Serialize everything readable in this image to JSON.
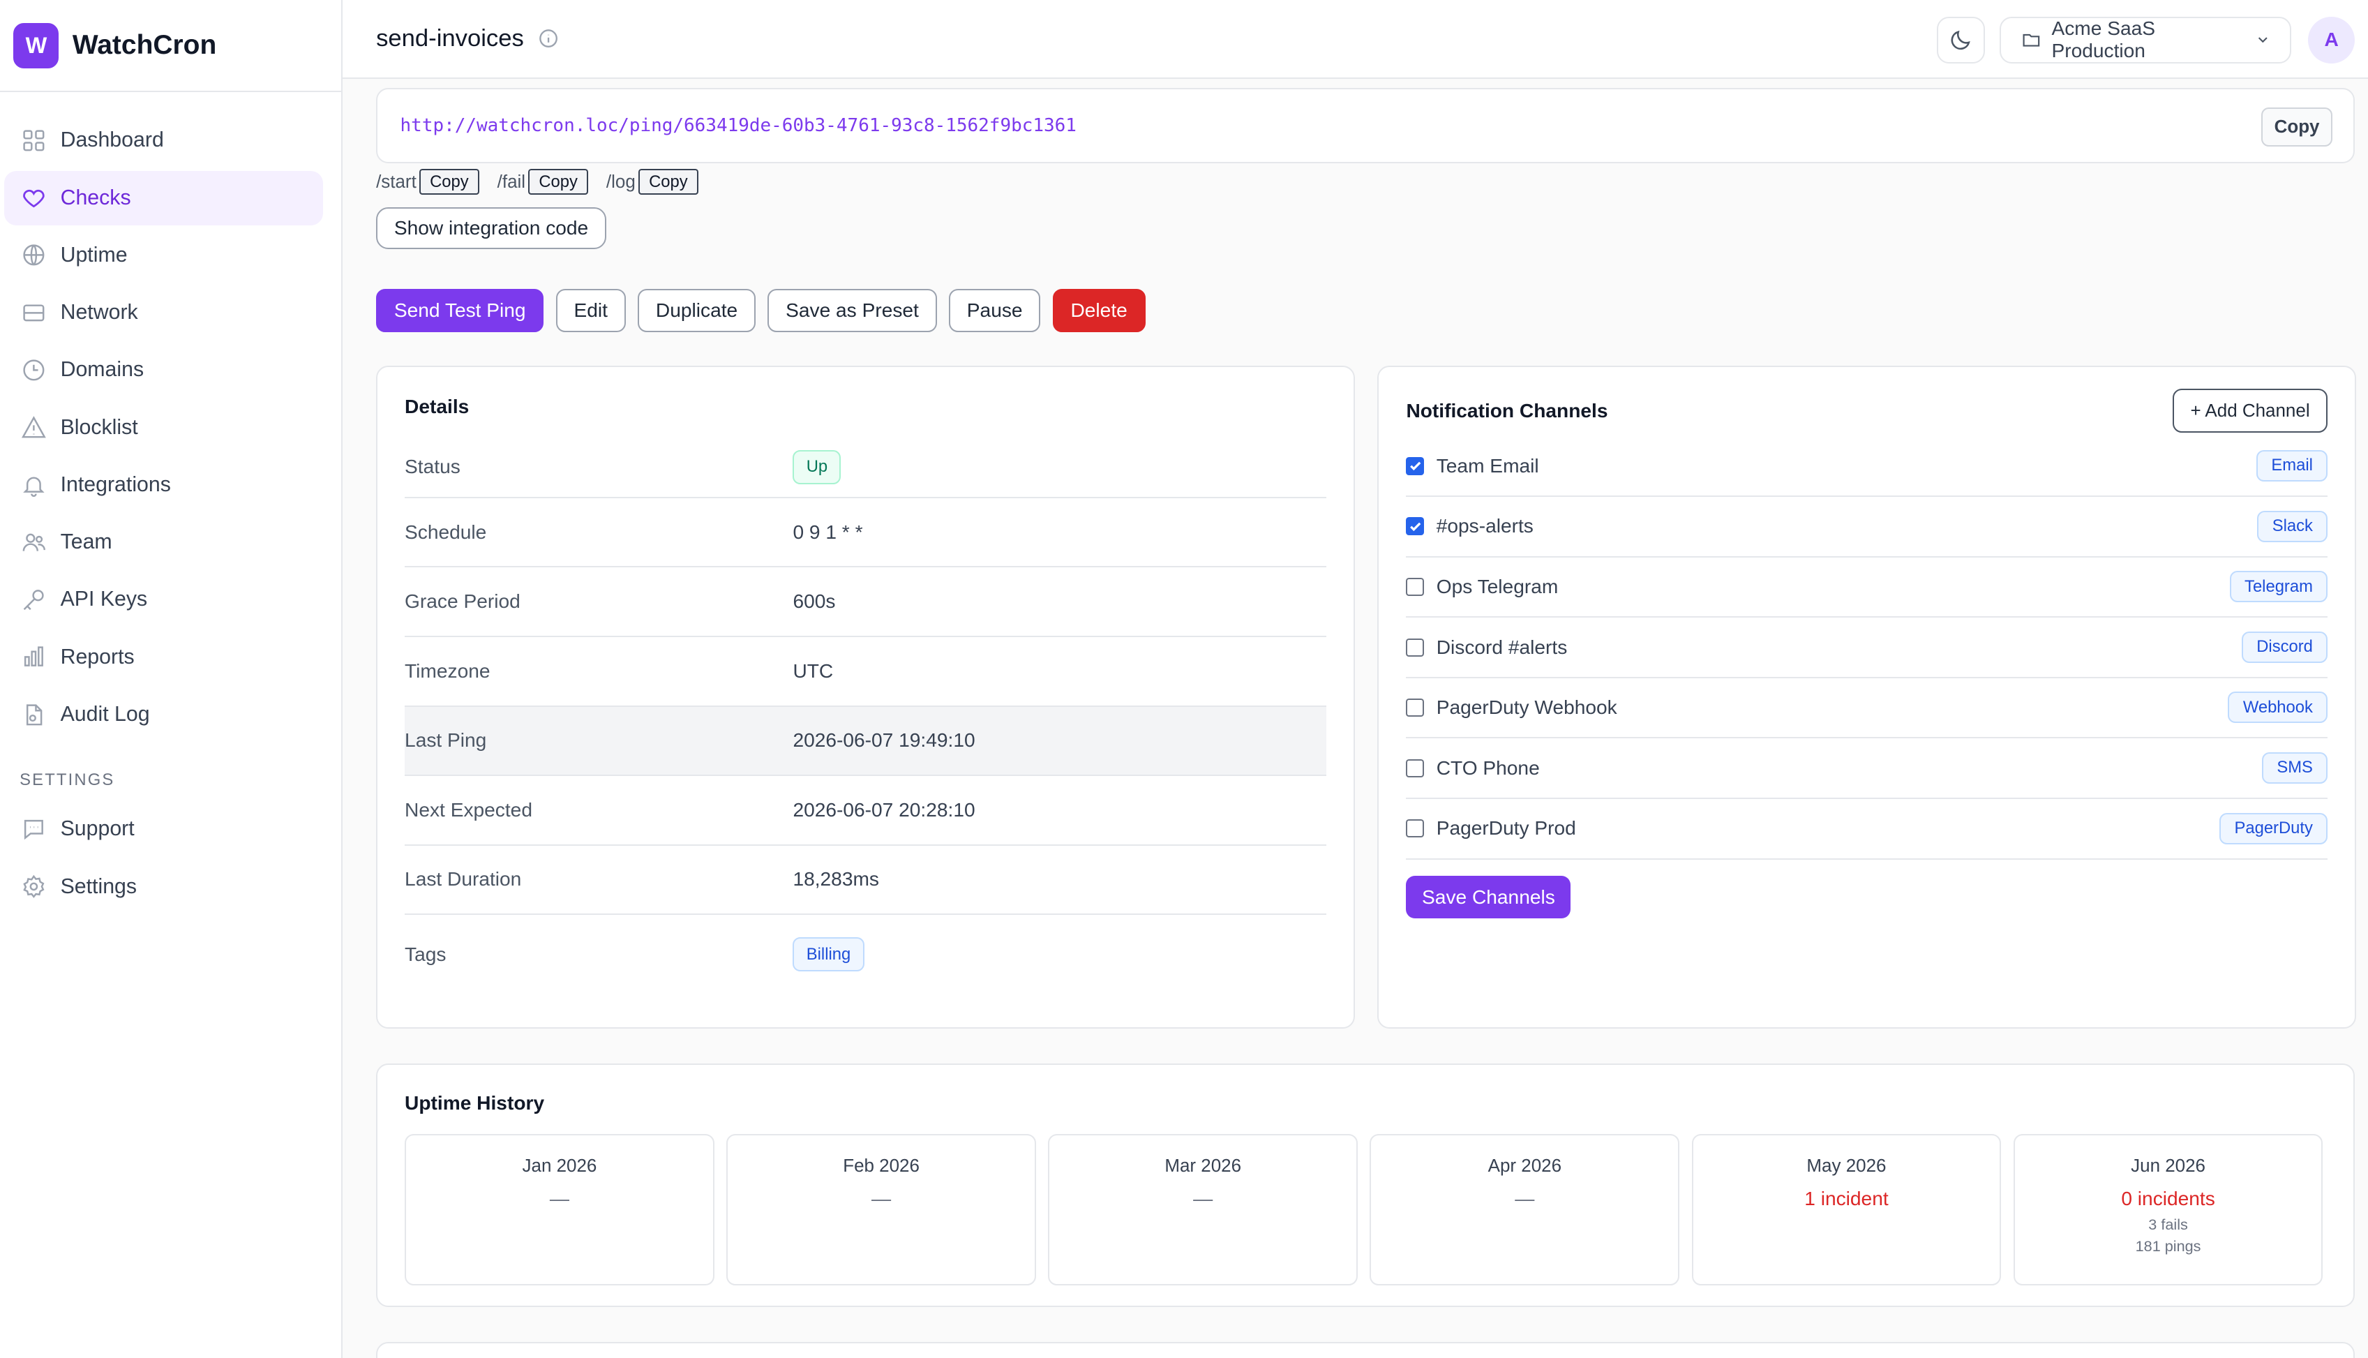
{
  "app": {
    "logo_letter": "W",
    "name": "WatchCron"
  },
  "sidebar": {
    "items": [
      {
        "label": "Dashboard",
        "icon": "grid-icon"
      },
      {
        "label": "Checks",
        "icon": "heart-icon",
        "active": true
      },
      {
        "label": "Uptime",
        "icon": "globe-icon"
      },
      {
        "label": "Network",
        "icon": "server-icon"
      },
      {
        "label": "Domains",
        "icon": "clock-icon"
      },
      {
        "label": "Blocklist",
        "icon": "warning-icon"
      },
      {
        "label": "Integrations",
        "icon": "bell-icon"
      },
      {
        "label": "Team",
        "icon": "users-icon"
      },
      {
        "label": "API Keys",
        "icon": "key-icon"
      },
      {
        "label": "Reports",
        "icon": "bar-chart-icon"
      },
      {
        "label": "Audit Log",
        "icon": "file-icon"
      }
    ],
    "settings_heading": "SETTINGS",
    "settings_items": [
      {
        "label": "Support",
        "icon": "chat-icon"
      },
      {
        "label": "Settings",
        "icon": "gear-icon"
      }
    ]
  },
  "header": {
    "title": "send-invoices",
    "project": "Acme SaaS Production",
    "avatar": "A"
  },
  "ping": {
    "url": "http://watchcron.loc/ping/663419de-60b3-4761-93c8-1562f9bc1361",
    "copy_label": "Copy",
    "endpoints": [
      "/start",
      "/fail",
      "/log"
    ],
    "mini_copy_label": "Copy",
    "integration_label": "Show integration code"
  },
  "actions": {
    "send_test": "Send Test Ping",
    "edit": "Edit",
    "duplicate": "Duplicate",
    "save_preset": "Save as Preset",
    "pause": "Pause",
    "delete": "Delete"
  },
  "details": {
    "title": "Details",
    "status_label": "Status",
    "status_value": "Up",
    "schedule_label": "Schedule",
    "schedule_value": "0 9 1 * *",
    "grace_label": "Grace Period",
    "grace_value": "600s",
    "timezone_label": "Timezone",
    "timezone_value": "UTC",
    "last_ping_label": "Last Ping",
    "last_ping_value": "2026-06-07 19:49:10",
    "next_expected_label": "Next Expected",
    "next_expected_value": "2026-06-07 20:28:10",
    "last_duration_label": "Last Duration",
    "last_duration_value": "18,283ms",
    "tags_label": "Tags",
    "tags_value": "Billing"
  },
  "channels": {
    "title": "Notification Channels",
    "add_label": "+ Add Channel",
    "items": [
      {
        "name": "Team Email",
        "type": "Email",
        "checked": true
      },
      {
        "name": "#ops-alerts",
        "type": "Slack",
        "checked": true
      },
      {
        "name": "Ops Telegram",
        "type": "Telegram",
        "checked": false
      },
      {
        "name": "Discord #alerts",
        "type": "Discord",
        "checked": false
      },
      {
        "name": "PagerDuty Webhook",
        "type": "Webhook",
        "checked": false
      },
      {
        "name": "CTO Phone",
        "type": "SMS",
        "checked": false
      },
      {
        "name": "PagerDuty Prod",
        "type": "PagerDuty",
        "checked": false
      }
    ],
    "save_label": "Save Channels"
  },
  "uptime": {
    "title": "Uptime History",
    "months": [
      {
        "name": "Jan 2026",
        "value": "—"
      },
      {
        "name": "Feb 2026",
        "value": "—"
      },
      {
        "name": "Mar 2026",
        "value": "—"
      },
      {
        "name": "Apr 2026",
        "value": "—"
      },
      {
        "name": "May 2026",
        "value": "1 incident"
      },
      {
        "name": "Jun 2026",
        "value": "0 incidents",
        "fails": "3 fails",
        "pings": "181 pings"
      }
    ]
  }
}
